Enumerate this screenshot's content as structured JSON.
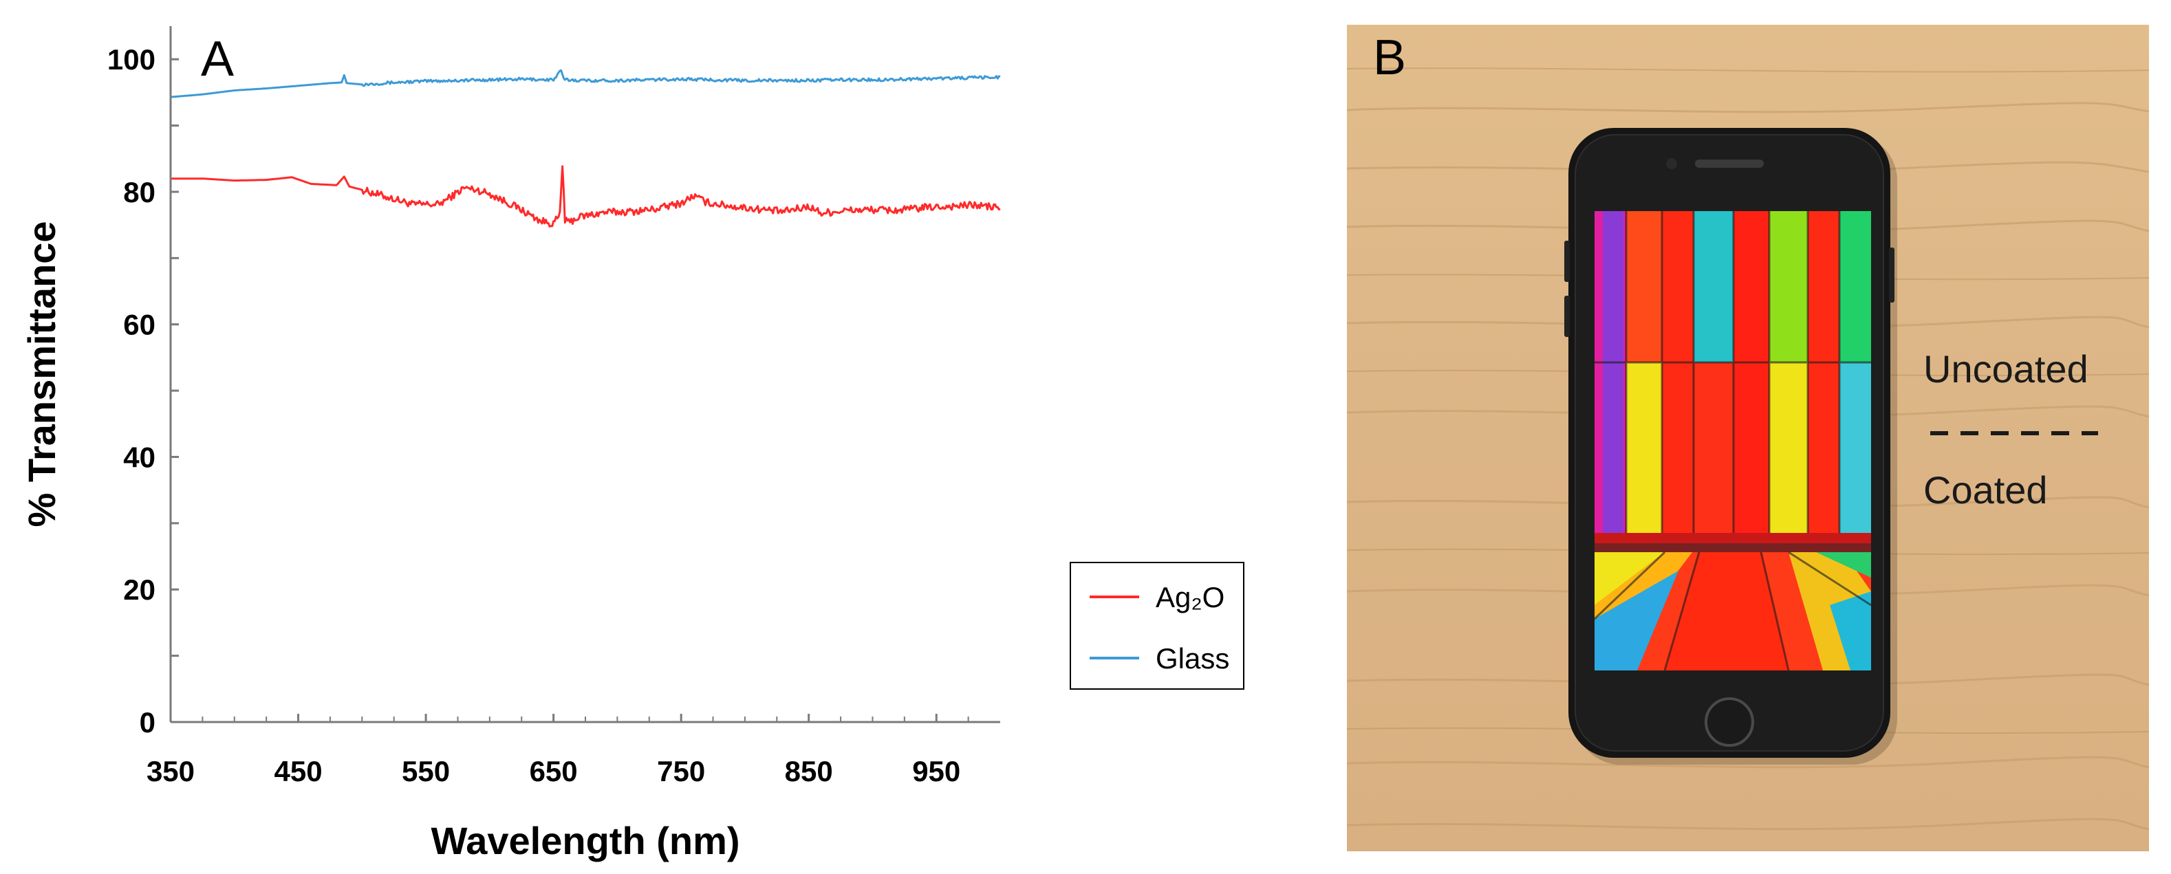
{
  "chart_data": {
    "type": "line",
    "panel_label": "A",
    "xlabel": "Wavelength (nm)",
    "ylabel": "% Transmittance",
    "xlim": [
      350,
      1000
    ],
    "ylim": [
      0,
      105
    ],
    "xticks": [
      350,
      450,
      550,
      650,
      750,
      850,
      950
    ],
    "yticks": [
      0,
      20,
      40,
      60,
      80,
      100
    ],
    "legend_position": "bottom-right",
    "grid": false,
    "series": [
      {
        "name": "Ag₂O",
        "color": "#ff2a2a",
        "x": [
          350,
          375,
          400,
          425,
          445,
          460,
          480,
          486,
          490,
          500,
          520,
          540,
          560,
          570,
          580,
          590,
          600,
          620,
          640,
          650,
          655,
          657,
          659,
          661,
          663,
          670,
          690,
          710,
          730,
          750,
          760,
          770,
          790,
          810,
          830,
          850,
          860,
          880,
          900,
          920,
          940,
          960,
          980,
          1000
        ],
        "y": [
          82,
          82,
          81.7,
          81.8,
          82.2,
          81.2,
          81,
          82.3,
          80.8,
          80.3,
          79.2,
          78.1,
          78.1,
          79.3,
          80.6,
          80.3,
          79.7,
          77.8,
          75.6,
          75.2,
          76.5,
          84,
          75.8,
          75.3,
          75.5,
          76.2,
          76.9,
          77,
          77.4,
          78.3,
          79.4,
          78.4,
          77.8,
          77.4,
          77,
          77.8,
          76.8,
          77.2,
          77.3,
          77.2,
          77.6,
          77.8,
          78,
          77.6
        ]
      },
      {
        "name": "Glass",
        "color": "#3d9ad6",
        "x": [
          350,
          375,
          400,
          425,
          450,
          475,
          484,
          486,
          488,
          500,
          525,
          550,
          575,
          600,
          625,
          650,
          656,
          658,
          660,
          675,
          700,
          725,
          750,
          775,
          800,
          825,
          850,
          875,
          900,
          925,
          950,
          975,
          1000
        ],
        "y": [
          94.3,
          94.7,
          95.3,
          95.6,
          96,
          96.4,
          96.5,
          97.6,
          96.4,
          96.2,
          96.5,
          96.7,
          96.8,
          96.9,
          97,
          96.9,
          98.3,
          97,
          96.9,
          96.8,
          96.8,
          96.9,
          97,
          96.9,
          96.8,
          96.8,
          96.8,
          96.9,
          96.9,
          97,
          97.1,
          97.2,
          97.3
        ]
      }
    ]
  },
  "photo": {
    "panel_label": "B",
    "label_top": "Uncoated",
    "label_bottom": "Coated"
  }
}
